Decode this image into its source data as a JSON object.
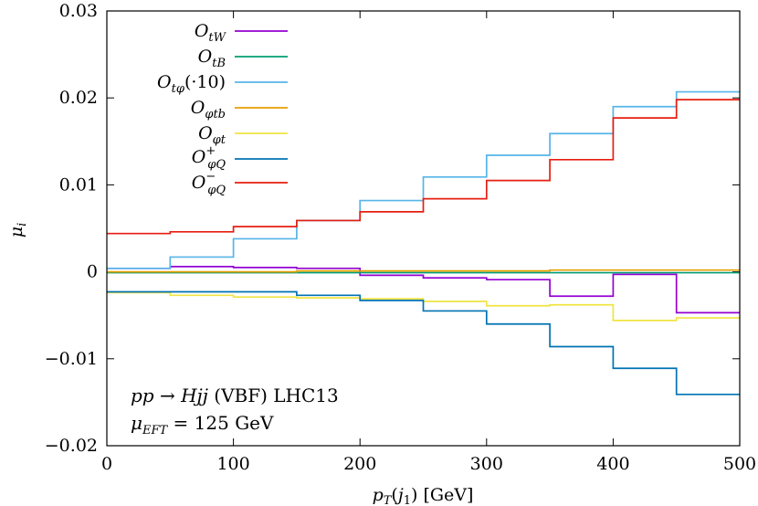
{
  "chart_data": {
    "type": "line",
    "step": true,
    "xlabel": "p_T(j_1) [GeV]",
    "ylabel": "μ_i",
    "xlim": [
      0,
      500
    ],
    "ylim": [
      -0.02,
      0.03
    ],
    "xticks": [
      0,
      100,
      200,
      300,
      400,
      500
    ],
    "yticks": [
      -0.02,
      -0.01,
      0,
      0.01,
      0.02,
      0.03
    ],
    "xtick_labels": [
      "0",
      "100",
      "200",
      "300",
      "400",
      "500"
    ],
    "ytick_labels": [
      "−0.02",
      "−0.01",
      "0",
      "0.01",
      "0.02",
      "0.03"
    ],
    "bin_edges": [
      0,
      50,
      100,
      150,
      200,
      250,
      300,
      350,
      400,
      450,
      500
    ],
    "legend_position": "top-left",
    "annotations": [
      "pp → Hjj (VBF) LHC13",
      "μ_EFT = 125 GeV"
    ],
    "series": [
      {
        "name": "O_tW",
        "color": "#9400d3",
        "values": [
          0.0004,
          0.0006,
          0.0005,
          0.0004,
          -0.0004,
          -0.0007,
          -0.0009,
          -0.0028,
          -0.0003,
          -0.0047
        ]
      },
      {
        "name": "O_tB",
        "color": "#009e73",
        "values": [
          -0.0001,
          -0.0001,
          -0.0001,
          -0.0001,
          -0.0001,
          -0.0001,
          -0.0001,
          -0.0001,
          -0.0001,
          -0.0001
        ]
      },
      {
        "name": "O_tφ(·10)",
        "color": "#56b4e9",
        "values": [
          0.0004,
          0.0017,
          0.0038,
          0.0059,
          0.0082,
          0.0109,
          0.0134,
          0.0159,
          0.019,
          0.0207
        ]
      },
      {
        "name": "O_φtb",
        "color": "#e69f00",
        "values": [
          0.0,
          0.0,
          0.0,
          0.0001,
          0.0001,
          0.0001,
          0.0001,
          0.0002,
          0.0002,
          0.0002
        ]
      },
      {
        "name": "O_φt",
        "color": "#f0e442",
        "values": [
          -0.0024,
          -0.0027,
          -0.0029,
          -0.003,
          -0.0031,
          -0.0034,
          -0.0039,
          -0.0038,
          -0.0056,
          -0.0053
        ]
      },
      {
        "name": "O_φQ^+",
        "color": "#0072b2",
        "values": [
          -0.0023,
          -0.0023,
          -0.0023,
          -0.0027,
          -0.0033,
          -0.0045,
          -0.006,
          -0.0086,
          -0.0111,
          -0.0141
        ]
      },
      {
        "name": "O_φQ^−",
        "color": "#e51e10",
        "values": [
          0.0044,
          0.0046,
          0.0052,
          0.0059,
          0.0069,
          0.0084,
          0.0105,
          0.0129,
          0.0177,
          0.0198
        ]
      }
    ]
  }
}
